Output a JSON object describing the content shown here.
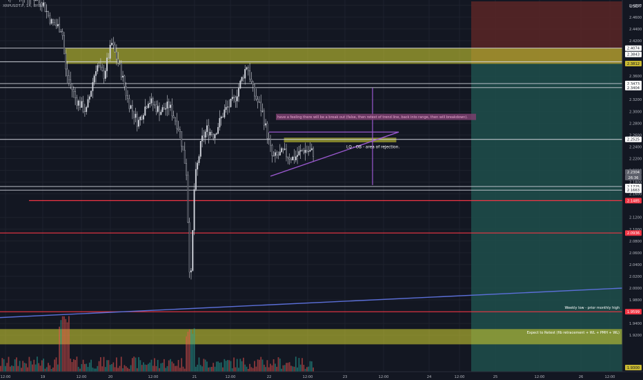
{
  "header": {
    "symbol": "XRPUSDT.P, 1h, BYBIT",
    "currency": "USDT"
  },
  "colors": {
    "background": "#131722",
    "bull": "#d1d4dc",
    "bear": "#363a45",
    "zone_yellow": "#c8c832",
    "red_line": "#f23645",
    "purple": "#9b59d0",
    "stop_zone": "#5a2626",
    "target_zone": "#1f4f4b"
  },
  "chart_data": {
    "type": "candlestick",
    "title": "",
    "x_tick_labels": [
      "12:00",
      "19",
      "12:00",
      "20",
      "12:00",
      "21",
      "12:00",
      "22",
      "12:00",
      "23",
      "12:00",
      "24",
      "12:00",
      "25",
      "12:00",
      "26",
      "12:00"
    ],
    "y_tick_labels": [
      "2.4800",
      "2.4600",
      "2.4400",
      "2.4200",
      "2.3600",
      "2.3400",
      "2.3200",
      "2.3000",
      "2.2800",
      "2.2600",
      "2.2400",
      "2.2200",
      "2.2000",
      "2.1800",
      "2.1600",
      "2.1200",
      "2.1000",
      "2.0800",
      "2.0600",
      "2.0400",
      "2.0200",
      "2.0000",
      "1.9800",
      "1.9400",
      "1.9200"
    ],
    "ylim": [
      1.905,
      2.505
    ],
    "price_badges": [
      {
        "label": "2.4074",
        "kind": "white"
      },
      {
        "label": "2.3843",
        "kind": "white"
      },
      {
        "label": "2.3812",
        "kind": "yellow"
      },
      {
        "label": "2.3473",
        "kind": "white"
      },
      {
        "label": "2.3404",
        "kind": "white"
      },
      {
        "label": "2.2525",
        "kind": "white"
      },
      {
        "label": "2.2304",
        "kind": "gray"
      },
      {
        "label": "26:36",
        "kind": "gray"
      },
      {
        "label": "2.1725",
        "kind": "white"
      },
      {
        "label": "2.1663",
        "kind": "white"
      },
      {
        "label": "2.1485",
        "kind": "red"
      },
      {
        "label": "2.0936",
        "kind": "red"
      },
      {
        "label": "1.9599",
        "kind": "red"
      },
      {
        "label": "1.9300",
        "kind": "yellow"
      }
    ],
    "horizontal_levels": [
      {
        "price": 2.4074,
        "color": "white"
      },
      {
        "price": 2.3843,
        "color": "white"
      },
      {
        "price": 2.3473,
        "color": "white"
      },
      {
        "price": 2.3404,
        "color": "white"
      },
      {
        "price": 2.2525,
        "color": "white"
      },
      {
        "price": 2.1725,
        "color": "white"
      },
      {
        "price": 2.1663,
        "color": "white"
      },
      {
        "price": 2.1485,
        "color": "red"
      },
      {
        "price": 2.0936,
        "color": "red"
      },
      {
        "price": 1.9599,
        "color": "red"
      }
    ],
    "zones": [
      {
        "name": "upper-supply",
        "low": 2.3812,
        "high": 2.4074
      },
      {
        "name": "lq-ob",
        "low": 2.248,
        "high": 2.255
      },
      {
        "name": "bottom",
        "low": 1.905,
        "high": 1.93
      }
    ],
    "annotations": {
      "breakout_note": "have a feeling there will be a break out (false, then retest of trend line, back into range, then will breakdown).",
      "lq_ob_note": "LQ - OB - area of rejection.",
      "weekly_low_note": "Weekly low - prior monthly high",
      "expect_note": "Expect to Retest (fib retracement + WL + PMH + WL)"
    }
  }
}
